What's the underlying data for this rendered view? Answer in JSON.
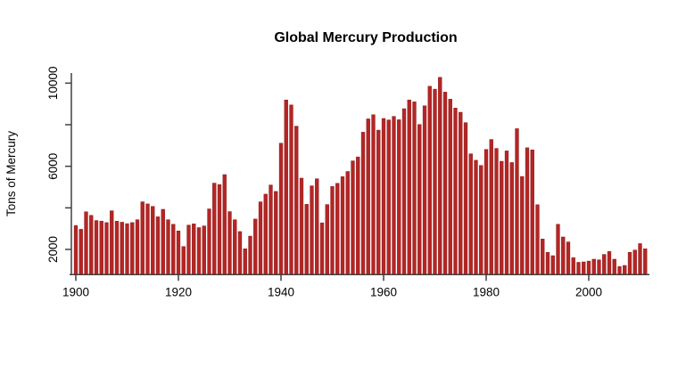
{
  "background_color": "#ffffff",
  "chart_data": {
    "type": "bar",
    "title": "Global Mercury Production",
    "xlabel": "",
    "ylabel": "Tons of Mercury",
    "legend": false,
    "grid": false,
    "bar_color": "#b52524",
    "bar_border_color": "#8c1b1b",
    "axis_color": "#404040",
    "x_ticks": [
      1900,
      1920,
      1940,
      1960,
      1980,
      2000
    ],
    "y_ticks": [
      {
        "value": 2000,
        "label": "2000"
      },
      {
        "value": 4000,
        "label": ""
      },
      {
        "value": 6000,
        "label": "6000"
      },
      {
        "value": 8000,
        "label": ""
      },
      {
        "value": 10000,
        "label": "10000"
      }
    ],
    "ylim": [
      790,
      10500
    ],
    "years": [
      1900,
      1901,
      1902,
      1903,
      1904,
      1905,
      1906,
      1907,
      1908,
      1909,
      1910,
      1911,
      1912,
      1913,
      1914,
      1915,
      1916,
      1917,
      1918,
      1919,
      1920,
      1921,
      1922,
      1923,
      1924,
      1925,
      1926,
      1927,
      1928,
      1929,
      1930,
      1931,
      1932,
      1933,
      1934,
      1935,
      1936,
      1937,
      1938,
      1939,
      1940,
      1941,
      1942,
      1943,
      1944,
      1945,
      1946,
      1947,
      1948,
      1949,
      1950,
      1951,
      1952,
      1953,
      1954,
      1955,
      1956,
      1957,
      1958,
      1959,
      1960,
      1961,
      1962,
      1963,
      1964,
      1965,
      1966,
      1967,
      1968,
      1969,
      1970,
      1971,
      1972,
      1973,
      1974,
      1975,
      1976,
      1977,
      1978,
      1979,
      1980,
      1981,
      1982,
      1983,
      1984,
      1985,
      1986,
      1987,
      1988,
      1989,
      1990,
      1991,
      1992,
      1993,
      1994,
      1995,
      1996,
      1997,
      1998,
      1999,
      2000,
      2001,
      2002,
      2003,
      2004,
      2005,
      2006,
      2007,
      2008,
      2009,
      2010,
      2011
    ],
    "values": [
      3150,
      2970,
      3810,
      3640,
      3390,
      3360,
      3290,
      3860,
      3360,
      3310,
      3240,
      3290,
      3430,
      4290,
      4190,
      4070,
      3570,
      3930,
      3430,
      3210,
      2890,
      2140,
      3170,
      3230,
      3050,
      3130,
      3950,
      5190,
      5120,
      5600,
      3820,
      3430,
      2860,
      2030,
      2640,
      3460,
      4290,
      4660,
      5100,
      4790,
      7110,
      9190,
      8950,
      7930,
      5430,
      4170,
      5060,
      5400,
      3280,
      4160,
      5030,
      5180,
      5500,
      5750,
      6260,
      6450,
      7640,
      8280,
      8480,
      7740,
      8300,
      8230,
      8400,
      8240,
      8770,
      9190,
      9100,
      8010,
      8910,
      9850,
      9710,
      10280,
      9570,
      9230,
      8800,
      8600,
      8100,
      6600,
      6290,
      6040,
      6810,
      7290,
      6860,
      6240,
      6740,
      6180,
      7810,
      5510,
      6890,
      6790,
      4150,
      2500,
      1860,
      1700,
      3210,
      2600,
      2360,
      1600,
      1380,
      1400,
      1440,
      1530,
      1500,
      1760,
      1900,
      1530,
      1180,
      1230,
      1860,
      1970,
      2280,
      2030
    ]
  }
}
